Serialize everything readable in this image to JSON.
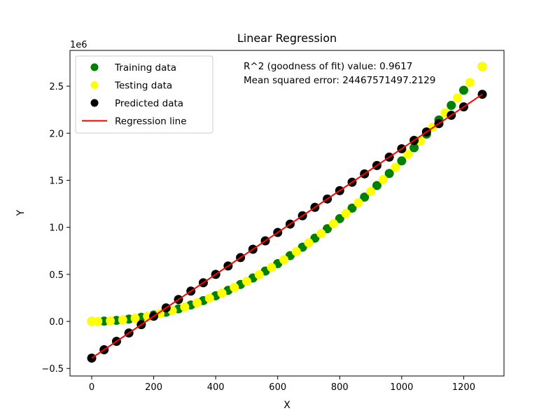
{
  "chart_data": {
    "type": "scatter",
    "title": "Linear Regression",
    "xlabel": "X",
    "ylabel": "Y",
    "xlim": [
      -70,
      1330
    ],
    "ylim": [
      -580000,
      2880000
    ],
    "y_offset_label": "1e6",
    "x_ticks": [
      0,
      200,
      400,
      600,
      800,
      1000,
      1200
    ],
    "x_tick_labels": [
      "0",
      "200",
      "400",
      "600",
      "800",
      "1000",
      "1200"
    ],
    "y_ticks": [
      -500000,
      0,
      500000,
      1000000,
      1500000,
      2000000,
      2500000
    ],
    "y_tick_labels": [
      "−0.5",
      "0.0",
      "0.5",
      "1.0",
      "1.5",
      "2.0",
      "2.5"
    ],
    "grid": false,
    "legend_position": "top-left",
    "annotations": [
      "R^2 (goodness of fit) value: 0.9617",
      "Mean squared error: 24467571497.2129"
    ],
    "series": [
      {
        "name": "Training data",
        "kind": "scatter",
        "color": "#008000",
        "x": [
          0,
          40,
          80,
          120,
          160,
          200,
          240,
          280,
          320,
          360,
          400,
          440,
          480,
          520,
          560,
          600,
          640,
          680,
          720,
          760,
          800,
          840,
          880,
          920,
          960,
          1000,
          1040,
          1080,
          1120,
          1160,
          1200,
          1260
        ],
        "y": [
          0,
          2730,
          10920,
          24570,
          43680,
          68250,
          98280,
          133770,
          174720,
          221130,
          273000,
          330330,
          393120,
          461370,
          535080,
          614250,
          698880,
          788970,
          884520,
          985530,
          1092000,
          1203930,
          1321320,
          1444170,
          1572480,
          1706250,
          1845480,
          1990170,
          2140320,
          2295930,
          2457000,
          2708730
        ]
      },
      {
        "name": "Testing data",
        "kind": "scatter",
        "color": "#ffff00",
        "x": [
          0,
          20,
          60,
          100,
          140,
          180,
          220,
          260,
          300,
          340,
          380,
          420,
          460,
          500,
          540,
          580,
          620,
          660,
          700,
          740,
          780,
          820,
          860,
          900,
          940,
          980,
          1020,
          1060,
          1100,
          1140,
          1180,
          1220,
          1260
        ],
        "y": [
          0,
          680,
          6140,
          17060,
          33440,
          55280,
          82580,
          115340,
          153560,
          197240,
          246380,
          300980,
          361040,
          426560,
          497540,
          573980,
          655880,
          743240,
          836060,
          934340,
          1038080,
          1147280,
          1261940,
          1382060,
          1507640,
          1638680,
          1775180,
          1917140,
          2064560,
          2217440,
          2375780,
          2539580,
          2708730
        ]
      },
      {
        "name": "Predicted data",
        "kind": "scatter",
        "color": "#000000",
        "x": [
          0,
          40,
          80,
          120,
          160,
          200,
          240,
          280,
          320,
          360,
          400,
          440,
          480,
          520,
          560,
          600,
          640,
          680,
          720,
          760,
          800,
          840,
          880,
          920,
          960,
          1000,
          1040,
          1080,
          1120,
          1160,
          1200,
          1260
        ],
        "y": [
          -390000,
          -301000,
          -212000,
          -123000,
          -34000,
          55000,
          144000,
          233000,
          322000,
          411000,
          500000,
          589000,
          678000,
          767000,
          856000,
          945000,
          1034000,
          1123000,
          1212000,
          1301000,
          1390000,
          1479000,
          1568000,
          1657000,
          1746000,
          1835000,
          1924000,
          2013000,
          2102000,
          2191000,
          2280000,
          2413500
        ]
      },
      {
        "name": "Regression line",
        "kind": "line",
        "color": "#ff0000",
        "x": [
          0,
          1260
        ],
        "y": [
          -390000,
          2413500
        ]
      }
    ]
  }
}
